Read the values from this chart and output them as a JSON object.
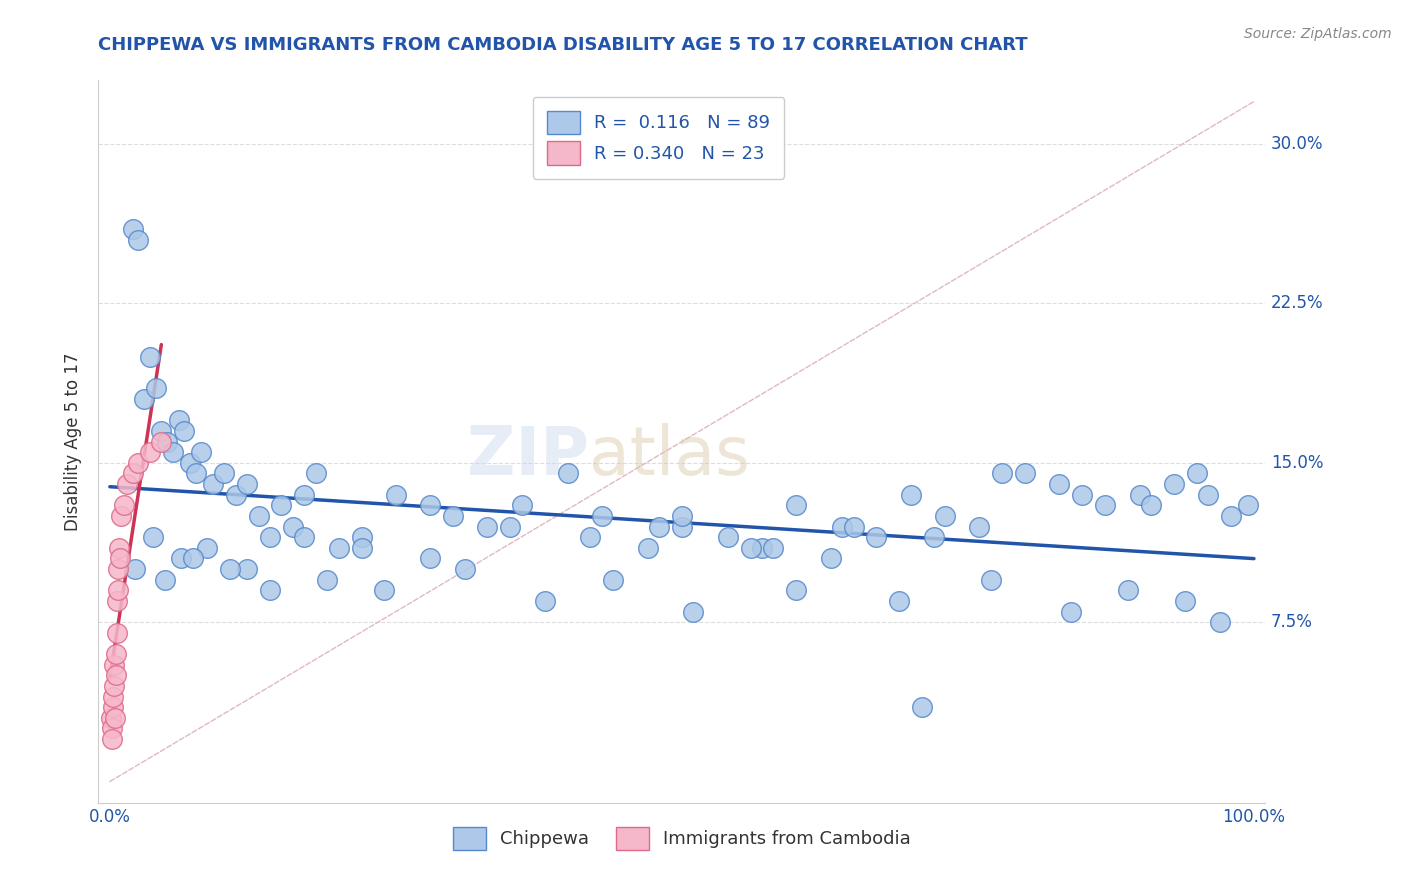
{
  "title": "CHIPPEWA VS IMMIGRANTS FROM CAMBODIA DISABILITY AGE 5 TO 17 CORRELATION CHART",
  "source": "Source: ZipAtlas.com",
  "ylabel": "Disability Age 5 to 17",
  "xlim": [
    0,
    100
  ],
  "ylim": [
    0,
    32
  ],
  "ytick_values": [
    7.5,
    15.0,
    22.5,
    30.0
  ],
  "watermark_zip": "ZIP",
  "watermark_atlas": "atlas",
  "chippewa_R": "0.116",
  "chippewa_N": "89",
  "cambodia_R": "0.340",
  "cambodia_N": "23",
  "chippewa_color": "#adc8e8",
  "cambodia_color": "#f5b8ca",
  "chippewa_edge": "#5588cc",
  "cambodia_edge": "#e06888",
  "trend_chippewa_color": "#2255aa",
  "trend_cambodia_color": "#cc3355",
  "diagonal_color": "#e0b8c0",
  "grid_color": "#dddddd",
  "background_color": "#ffffff",
  "title_color": "#2255aa",
  "axis_label_color": "#2255aa",
  "tick_color": "#2255aa",
  "legend_text_color": "#2255aa",
  "chippewa_x": [
    2.0,
    2.5,
    3.0,
    3.5,
    4.0,
    4.5,
    5.0,
    5.5,
    6.0,
    6.5,
    7.0,
    7.5,
    8.0,
    9.0,
    10.0,
    11.0,
    12.0,
    13.0,
    14.0,
    15.0,
    16.0,
    17.0,
    18.0,
    20.0,
    22.0,
    25.0,
    28.0,
    30.0,
    33.0,
    36.0,
    40.0,
    43.0,
    47.0,
    50.0,
    54.0,
    57.0,
    60.0,
    64.0,
    67.0,
    70.0,
    73.0,
    76.0,
    80.0,
    83.0,
    87.0,
    90.0,
    93.0,
    96.0,
    98.0,
    99.5,
    3.8,
    6.2,
    8.5,
    12.0,
    17.0,
    22.0,
    28.0,
    35.0,
    42.0,
    50.0,
    58.0,
    65.0,
    72.0,
    78.0,
    85.0,
    91.0,
    95.0,
    2.2,
    4.8,
    7.3,
    10.5,
    14.0,
    19.0,
    24.0,
    31.0,
    38.0,
    44.0,
    51.0,
    60.0,
    69.0,
    77.0,
    84.0,
    89.0,
    94.0,
    97.0,
    48.0,
    56.0,
    63.0,
    71.0
  ],
  "chippewa_y": [
    26.0,
    25.5,
    18.0,
    20.0,
    18.5,
    16.5,
    16.0,
    15.5,
    17.0,
    16.5,
    15.0,
    14.5,
    15.5,
    14.0,
    14.5,
    13.5,
    14.0,
    12.5,
    11.5,
    13.0,
    12.0,
    13.5,
    14.5,
    11.0,
    11.5,
    13.5,
    13.0,
    12.5,
    12.0,
    13.0,
    14.5,
    12.5,
    11.0,
    12.0,
    11.5,
    11.0,
    13.0,
    12.0,
    11.5,
    13.5,
    12.5,
    12.0,
    14.5,
    14.0,
    13.0,
    13.5,
    14.0,
    13.5,
    12.5,
    13.0,
    11.5,
    10.5,
    11.0,
    10.0,
    11.5,
    11.0,
    10.5,
    12.0,
    11.5,
    12.5,
    11.0,
    12.0,
    11.5,
    14.5,
    13.5,
    13.0,
    14.5,
    10.0,
    9.5,
    10.5,
    10.0,
    9.0,
    9.5,
    9.0,
    10.0,
    8.5,
    9.5,
    8.0,
    9.0,
    8.5,
    9.5,
    8.0,
    9.0,
    8.5,
    7.5,
    12.0,
    11.0,
    10.5,
    3.5
  ],
  "cambodia_x": [
    0.1,
    0.15,
    0.2,
    0.25,
    0.3,
    0.35,
    0.4,
    0.45,
    0.5,
    0.55,
    0.6,
    0.65,
    0.7,
    0.75,
    0.8,
    0.9,
    1.0,
    1.2,
    1.5,
    2.0,
    2.5,
    3.5,
    4.5
  ],
  "cambodia_y": [
    3.0,
    2.5,
    2.0,
    3.5,
    4.0,
    4.5,
    5.5,
    3.0,
    6.0,
    5.0,
    7.0,
    8.5,
    9.0,
    10.0,
    11.0,
    10.5,
    12.5,
    13.0,
    14.0,
    14.5,
    15.0,
    15.5,
    16.0
  ]
}
